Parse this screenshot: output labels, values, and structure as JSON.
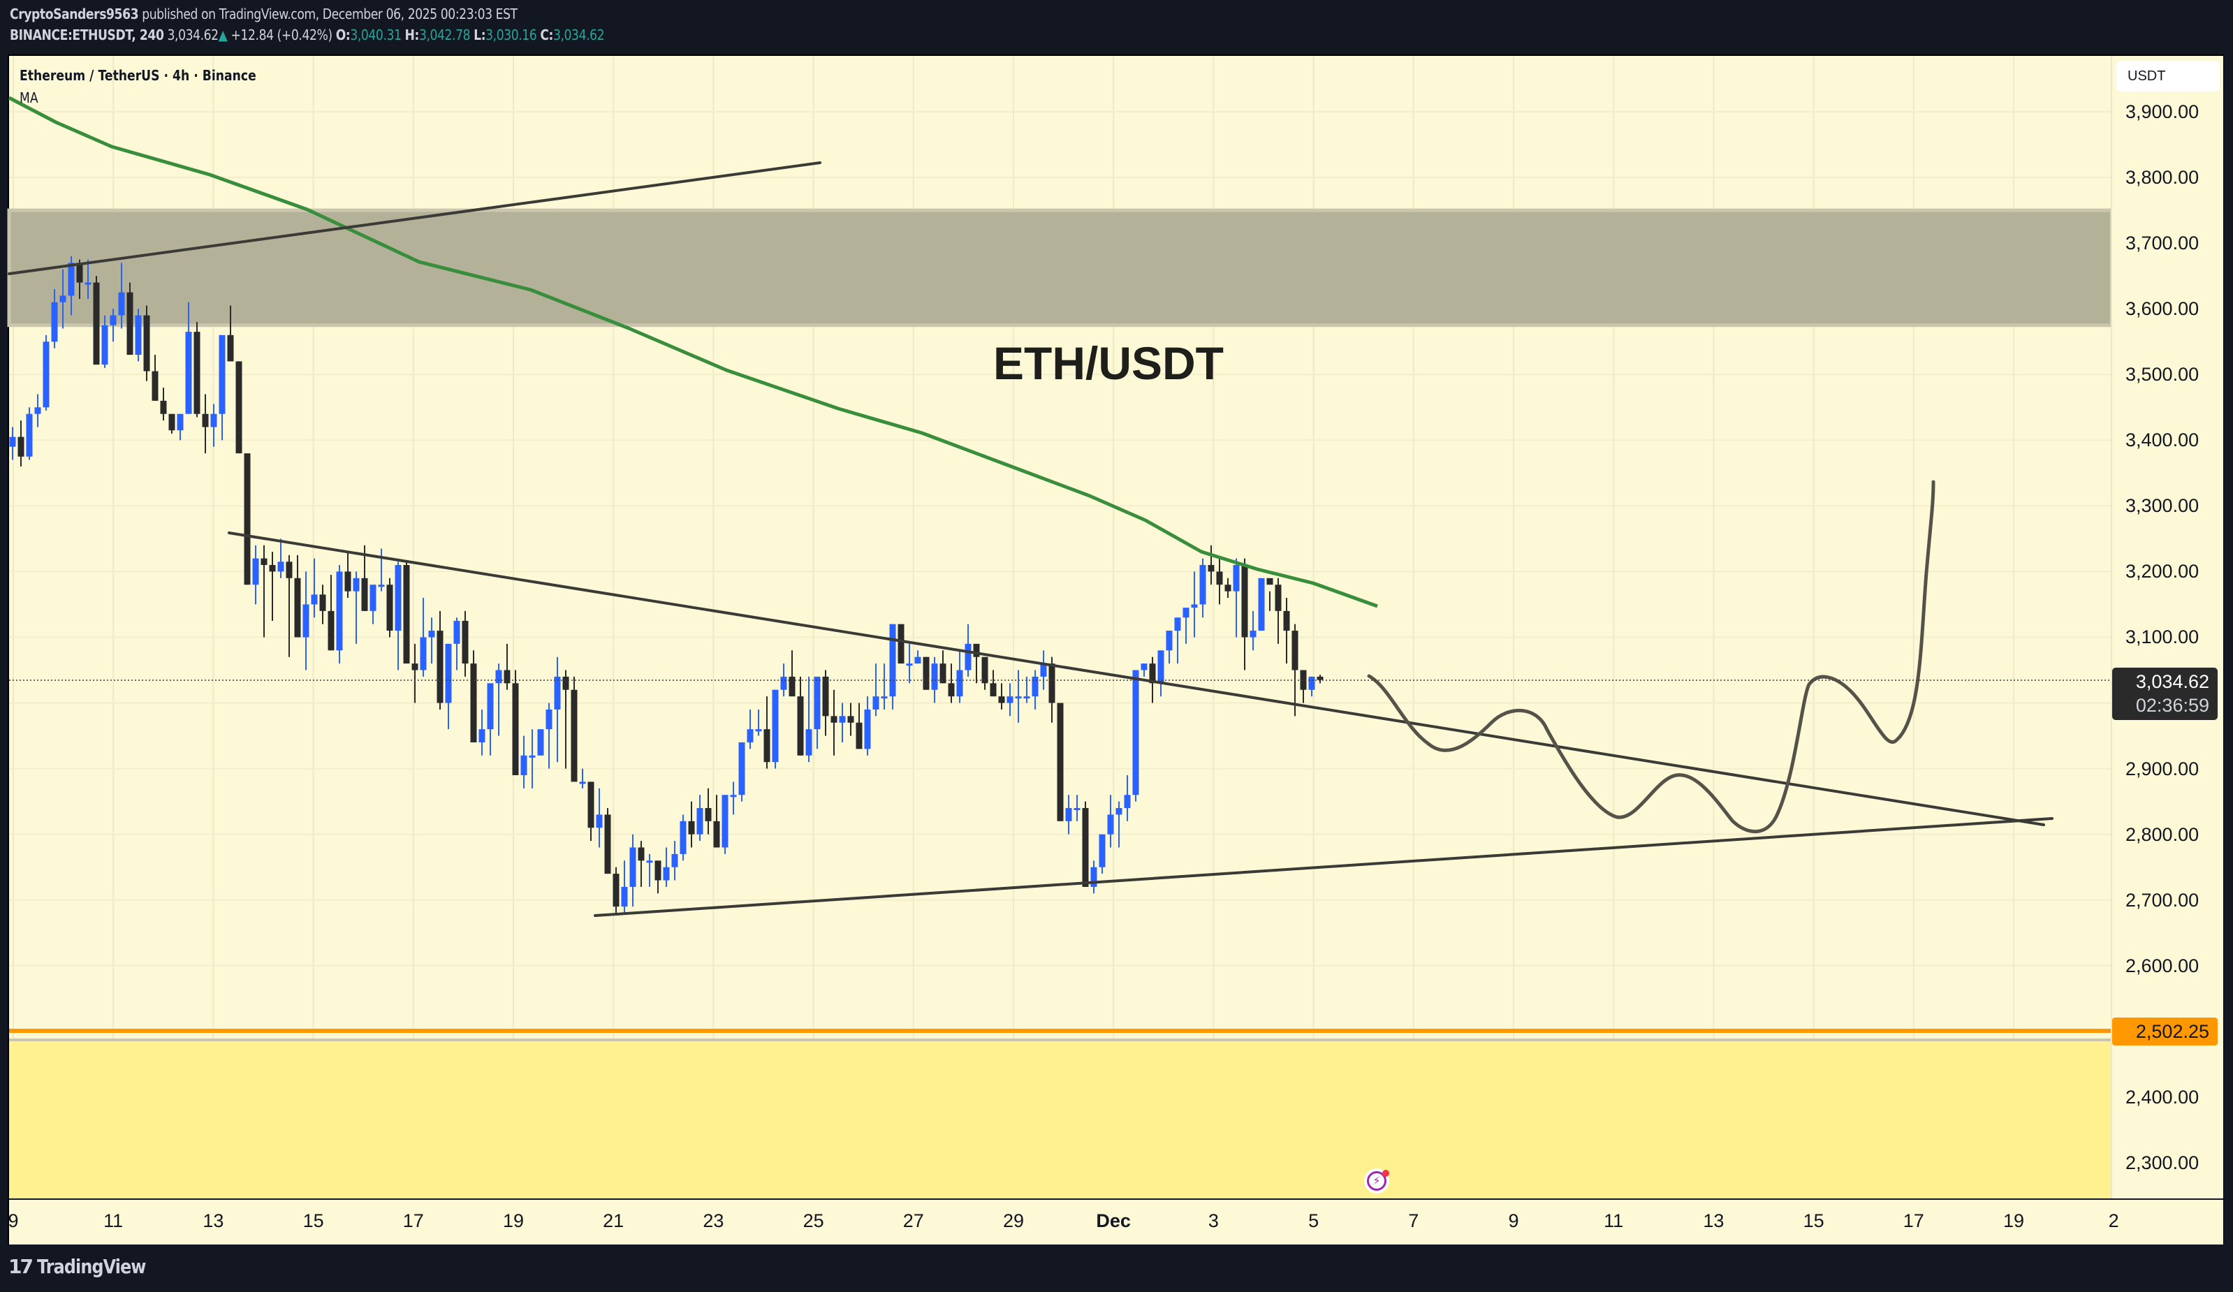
{
  "header": {
    "author": "CryptoSanders9563",
    "published_text": "published on TradingView.com, December 06, 2025 00:23:03 EST",
    "symbol": "BINANCE:ETHUSDT, 240",
    "last": "3,034.62",
    "change_arrow": "▲",
    "change": "+12.84 (+0.42%)",
    "o_label": "O:",
    "o": "3,040.31",
    "h_label": "H:",
    "h": "3,042.78",
    "l_label": "L:",
    "l": "3,030.16",
    "c_label": "C:",
    "c": "3,034.62"
  },
  "legend": {
    "title": "Ethereum / TetherUS · 4h · Binance",
    "indicator": "MA"
  },
  "annotation": {
    "text": "ETH/USDT"
  },
  "price_axis": {
    "unit": "USDT",
    "ticks": [
      "3,900.00",
      "3,800.00",
      "3,700.00",
      "3,600.00",
      "3,500.00",
      "3,400.00",
      "3,300.00",
      "3,200.00",
      "3,100.00",
      "2,900.00",
      "2,800.00",
      "2,700.00",
      "2,600.00",
      "2,400.00",
      "2,300.00"
    ],
    "current_price": "3,034.62",
    "countdown": "02:36:59",
    "level_label": "2,502.25"
  },
  "time_axis": {
    "ticks": [
      "9",
      "11",
      "13",
      "15",
      "17",
      "19",
      "21",
      "23",
      "25",
      "27",
      "29",
      "Dec",
      "3",
      "5",
      "7",
      "9",
      "11",
      "13",
      "15",
      "17",
      "19",
      "2"
    ]
  },
  "footer": {
    "brand": "TradingView",
    "logo_mark": "17"
  },
  "colors": {
    "background": "#fdf8d6",
    "up": "#2962ff",
    "down": "#2a2a2a",
    "ma": "#388e3c",
    "zone": "#b3b198",
    "support_zone": "#fff18f",
    "level": "#ff9800",
    "drawing": "#3a3a36"
  },
  "chart_data": {
    "type": "candlestick",
    "title": "Ethereum / TetherUS · 4h · Binance",
    "symbol": "ETHUSDT",
    "timeframe": "4h",
    "ylabel": "USDT",
    "ylim": [
      2260,
      3960
    ],
    "x_range": [
      "Nov 9",
      "Dec 21"
    ],
    "grid": true,
    "first_candle": "Nov 8 20:00",
    "candles_ohlc": [
      [
        3390,
        3420,
        3370,
        3405
      ],
      [
        3405,
        3430,
        3360,
        3375
      ],
      [
        3375,
        3450,
        3370,
        3440
      ],
      [
        3440,
        3470,
        3420,
        3450
      ],
      [
        3450,
        3560,
        3445,
        3550
      ],
      [
        3550,
        3630,
        3540,
        3610
      ],
      [
        3610,
        3660,
        3570,
        3620
      ],
      [
        3620,
        3680,
        3590,
        3670
      ],
      [
        3670,
        3675,
        3615,
        3640
      ],
      [
        3640,
        3675,
        3615,
        3640
      ],
      [
        3640,
        3650,
        3540,
        3515
      ],
      [
        3515,
        3590,
        3510,
        3575
      ],
      [
        3575,
        3600,
        3550,
        3590
      ],
      [
        3590,
        3670,
        3570,
        3625
      ],
      [
        3625,
        3640,
        3530,
        3530
      ],
      [
        3530,
        3600,
        3520,
        3590
      ],
      [
        3590,
        3605,
        3490,
        3505
      ],
      [
        3505,
        3530,
        3460,
        3460
      ],
      [
        3460,
        3480,
        3430,
        3440
      ],
      [
        3440,
        3430,
        3410,
        3415
      ],
      [
        3415,
        3440,
        3400,
        3440
      ],
      [
        3440,
        3610,
        3440,
        3565
      ],
      [
        3565,
        3580,
        3435,
        3440
      ],
      [
        3440,
        3470,
        3380,
        3420
      ],
      [
        3420,
        3455,
        3390,
        3440
      ],
      [
        3440,
        3510,
        3400,
        3560
      ],
      [
        3560,
        3605,
        3545,
        3520
      ],
      [
        3520,
        3520,
        3380,
        3380
      ],
      [
        3380,
        3360,
        3180,
        3180
      ],
      [
        3180,
        3240,
        3150,
        3220
      ],
      [
        3220,
        3240,
        3100,
        3210
      ],
      [
        3210,
        3230,
        3125,
        3200
      ],
      [
        3200,
        3250,
        3190,
        3215
      ],
      [
        3215,
        3225,
        3070,
        3190
      ],
      [
        3190,
        3225,
        3100,
        3100
      ],
      [
        3100,
        3200,
        3050,
        3150
      ],
      [
        3150,
        3220,
        3130,
        3165
      ],
      [
        3165,
        3180,
        3120,
        3140
      ],
      [
        3140,
        3195,
        3080,
        3080
      ],
      [
        3080,
        3210,
        3060,
        3200
      ],
      [
        3200,
        3230,
        3160,
        3170
      ],
      [
        3170,
        3200,
        3090,
        3190
      ],
      [
        3190,
        3240,
        3140,
        3140
      ],
      [
        3140,
        3180,
        3120,
        3180
      ],
      [
        3180,
        3235,
        3170,
        3180
      ],
      [
        3180,
        3190,
        3100,
        3110
      ],
      [
        3110,
        3215,
        3050,
        3210
      ],
      [
        3210,
        3215,
        3070,
        3060
      ],
      [
        3060,
        3090,
        3000,
        3050
      ],
      [
        3050,
        3160,
        3040,
        3100
      ],
      [
        3100,
        3130,
        3060,
        3110
      ],
      [
        3110,
        3140,
        2990,
        3000
      ],
      [
        3000,
        3090,
        2960,
        3090
      ],
      [
        3090,
        3130,
        3050,
        3125
      ],
      [
        3125,
        3140,
        3040,
        3060
      ],
      [
        3060,
        3080,
        2940,
        2940
      ],
      [
        2940,
        2990,
        2920,
        2960
      ],
      [
        2960,
        3000,
        2920,
        3030
      ],
      [
        3030,
        3060,
        2950,
        3050
      ],
      [
        3050,
        3090,
        3020,
        3030
      ],
      [
        3030,
        3050,
        2890,
        2890
      ],
      [
        2890,
        2950,
        2870,
        2920
      ],
      [
        2920,
        2960,
        2870,
        2920
      ],
      [
        2920,
        2950,
        2920,
        2960
      ],
      [
        2960,
        3000,
        2900,
        2990
      ],
      [
        2990,
        3070,
        2910,
        3040
      ],
      [
        3040,
        3050,
        2900,
        3020
      ],
      [
        3020,
        3040,
        2890,
        2880
      ],
      [
        2880,
        2900,
        2870,
        2880
      ],
      [
        2880,
        2820,
        2790,
        2810
      ],
      [
        2810,
        2870,
        2780,
        2830
      ],
      [
        2830,
        2840,
        2740,
        2740
      ],
      [
        2740,
        2750,
        2680,
        2690
      ],
      [
        2690,
        2760,
        2680,
        2720
      ],
      [
        2720,
        2800,
        2690,
        2780
      ],
      [
        2780,
        2790,
        2720,
        2760
      ],
      [
        2760,
        2770,
        2720,
        2760
      ],
      [
        2760,
        2750,
        2710,
        2730
      ],
      [
        2730,
        2780,
        2720,
        2750
      ],
      [
        2750,
        2790,
        2730,
        2770
      ],
      [
        2770,
        2830,
        2760,
        2820
      ],
      [
        2820,
        2850,
        2780,
        2800
      ],
      [
        2800,
        2860,
        2790,
        2840
      ],
      [
        2840,
        2870,
        2800,
        2820
      ],
      [
        2820,
        2860,
        2780,
        2780
      ],
      [
        2780,
        2860,
        2770,
        2860
      ],
      [
        2860,
        2880,
        2830,
        2860
      ],
      [
        2860,
        2940,
        2850,
        2940
      ],
      [
        2940,
        2990,
        2930,
        2960
      ],
      [
        2960,
        2990,
        2950,
        2960
      ],
      [
        2960,
        3010,
        2900,
        2910
      ],
      [
        2910,
        3020,
        2900,
        3020
      ],
      [
        3020,
        3060,
        3010,
        3040
      ],
      [
        3040,
        3080,
        3010,
        3010
      ],
      [
        3010,
        3040,
        2920,
        2920
      ],
      [
        2920,
        3040,
        2910,
        2960
      ],
      [
        2960,
        3010,
        2930,
        3040
      ],
      [
        3040,
        3050,
        2950,
        2980
      ],
      [
        2980,
        3020,
        2920,
        2970
      ],
      [
        2970,
        3000,
        2940,
        2980
      ],
      [
        2980,
        3000,
        2950,
        2970
      ],
      [
        2970,
        3000,
        2930,
        2930
      ],
      [
        2930,
        3010,
        2920,
        2990
      ],
      [
        2990,
        3060,
        2980,
        3010
      ],
      [
        3010,
        3060,
        2990,
        3010
      ],
      [
        3010,
        3120,
        2990,
        3120
      ],
      [
        3120,
        3110,
        3080,
        3060
      ],
      [
        3060,
        3090,
        3030,
        3060
      ],
      [
        3060,
        3080,
        3060,
        3070
      ],
      [
        3070,
        3070,
        3020,
        3020
      ],
      [
        3020,
        3070,
        3000,
        3060
      ],
      [
        3060,
        3080,
        3030,
        3030
      ],
      [
        3030,
        3060,
        3000,
        3010
      ],
      [
        3010,
        3080,
        3000,
        3050
      ],
      [
        3050,
        3120,
        3040,
        3090
      ],
      [
        3090,
        3080,
        3030,
        3070
      ],
      [
        3070,
        3060,
        3020,
        3030
      ],
      [
        3030,
        3050,
        3010,
        3010
      ],
      [
        3010,
        3030,
        2990,
        3000
      ],
      [
        3000,
        3030,
        2980,
        3010
      ],
      [
        3010,
        3050,
        2970,
        3010
      ],
      [
        3010,
        3040,
        3000,
        3010
      ],
      [
        3010,
        3050,
        2990,
        3040
      ],
      [
        3040,
        3080,
        3020,
        3060
      ],
      [
        3060,
        3070,
        2970,
        3000
      ],
      [
        3000,
        2980,
        2890,
        2820
      ],
      [
        2820,
        2860,
        2800,
        2840
      ],
      [
        2840,
        2860,
        2820,
        2840
      ],
      [
        2840,
        2850,
        2720,
        2720
      ],
      [
        2720,
        2760,
        2710,
        2750
      ],
      [
        2750,
        2800,
        2740,
        2800
      ],
      [
        2800,
        2860,
        2780,
        2830
      ],
      [
        2830,
        2850,
        2780,
        2840
      ],
      [
        2840,
        2890,
        2820,
        2860
      ],
      [
        2860,
        2910,
        2850,
        3050
      ],
      [
        3050,
        3060,
        3040,
        3060
      ],
      [
        3060,
        3070,
        3000,
        3030
      ],
      [
        3030,
        3080,
        3010,
        3080
      ],
      [
        3080,
        3110,
        3060,
        3110
      ],
      [
        3110,
        3130,
        3060,
        3130
      ],
      [
        3130,
        3140,
        3090,
        3145
      ],
      [
        3145,
        3200,
        3100,
        3150
      ],
      [
        3150,
        3220,
        3130,
        3210
      ],
      [
        3210,
        3240,
        3180,
        3200
      ],
      [
        3200,
        3220,
        3150,
        3180
      ],
      [
        3180,
        3190,
        3160,
        3170
      ],
      [
        3170,
        3220,
        3100,
        3210
      ],
      [
        3210,
        3220,
        3050,
        3100
      ],
      [
        3100,
        3140,
        3080,
        3110
      ],
      [
        3110,
        3180,
        3120,
        3190
      ],
      [
        3190,
        3170,
        3140,
        3180
      ],
      [
        3180,
        3190,
        3090,
        3140
      ],
      [
        3140,
        3160,
        3060,
        3110
      ],
      [
        3110,
        3120,
        2980,
        3050
      ],
      [
        3050,
        3040,
        3000,
        3020
      ],
      [
        3020,
        3040,
        3010,
        3040
      ],
      [
        3040,
        3043,
        3030,
        3035
      ]
    ],
    "moving_average": {
      "name": "MA",
      "points_price": [
        [
          0,
          3930
        ],
        [
          20,
          3830
        ],
        [
          40,
          3795
        ],
        [
          60,
          3740
        ],
        [
          80,
          3640
        ],
        [
          100,
          3585
        ],
        [
          120,
          3480
        ],
        [
          140,
          3430
        ],
        [
          170,
          3300
        ],
        [
          200,
          3140
        ]
      ],
      "note": "x index in candles, trending down from ~3930 to ~3150"
    },
    "zones": [
      {
        "name": "resistance-zone",
        "from": 3575,
        "to": 3750
      },
      {
        "name": "support-zone",
        "from": 2270,
        "to": 2480
      }
    ],
    "levels": [
      {
        "name": "orange-level",
        "price": 2502.25
      }
    ],
    "trendlines": [
      {
        "name": "upper-ascending",
        "from": [
          "Nov 9",
          3660
        ],
        "to": [
          "Nov 25",
          3830
        ]
      },
      {
        "name": "descending-resistance",
        "from": [
          "Nov 13",
          3260
        ],
        "to": [
          "Dec 19",
          2810
        ]
      },
      {
        "name": "ascending-support",
        "from": [
          "Nov 21",
          2670
        ],
        "to": [
          "Dec 20",
          2825
        ]
      }
    ],
    "projection": {
      "name": "forecast-path",
      "points": [
        [
          "Dec 6",
          3030
        ],
        [
          "Dec 8",
          2920
        ],
        [
          "Dec 9",
          3000
        ],
        [
          "Dec 11",
          2825
        ],
        [
          "Dec 12",
          2880
        ],
        [
          "Dec 14",
          2805
        ],
        [
          "Dec 15",
          3030
        ],
        [
          "Dec 17",
          2940
        ],
        [
          "Dec 17.5",
          3340
        ]
      ]
    }
  }
}
